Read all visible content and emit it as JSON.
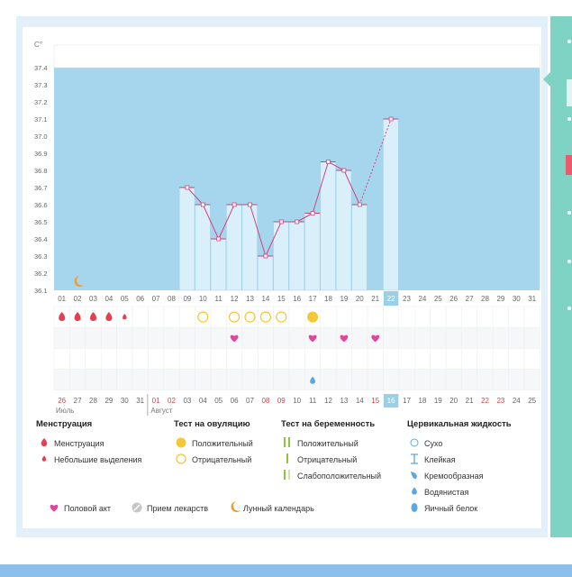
{
  "chart_data": {
    "type": "line",
    "unit_label": "C°",
    "ylim": [
      36.1,
      37.4
    ],
    "y_ticks": [
      "37.4",
      "37.3",
      "37.2",
      "37.1",
      "37.0",
      "36.9",
      "36.8",
      "36.7",
      "36.6",
      "36.5",
      "36.4",
      "36.3",
      "36.2",
      "36.1"
    ],
    "cycle_days": [
      "01",
      "02",
      "03",
      "04",
      "05",
      "06",
      "07",
      "08",
      "09",
      "10",
      "11",
      "12",
      "13",
      "14",
      "15",
      "16",
      "17",
      "18",
      "19",
      "20",
      "21",
      "22",
      "23",
      "24",
      "25",
      "26",
      "27",
      "28",
      "29",
      "30",
      "31"
    ],
    "highlight_day_index": 21,
    "temperatures": [
      null,
      null,
      null,
      null,
      null,
      null,
      null,
      null,
      36.7,
      36.6,
      36.4,
      36.6,
      36.6,
      36.3,
      36.5,
      36.5,
      36.55,
      36.85,
      36.8,
      36.6,
      null,
      37.1,
      null,
      null,
      null,
      null,
      null,
      null,
      null,
      null,
      null
    ],
    "dashed_segment": [
      19,
      21
    ],
    "moon_day_index": 1,
    "menstruation_days": [
      0,
      1,
      2,
      3
    ],
    "light_bleeding_days": [
      4
    ],
    "ovulation_negative_days": [
      9,
      11,
      12,
      13,
      14
    ],
    "ovulation_positive_days": [
      16
    ],
    "intercourse_days": [
      11,
      16,
      18,
      20
    ],
    "cervical_watery_days": [
      16
    ],
    "calendar_dates": [
      "26",
      "27",
      "28",
      "29",
      "30",
      "31",
      "01",
      "02",
      "03",
      "04",
      "05",
      "06",
      "07",
      "08",
      "09",
      "10",
      "11",
      "12",
      "13",
      "14",
      "15",
      "16",
      "17",
      "18",
      "19",
      "20",
      "21",
      "22",
      "23",
      "24",
      "25"
    ],
    "red_date_indices": [
      0,
      6,
      7,
      13,
      14,
      20,
      27,
      28
    ],
    "month_left": "Июль",
    "month_right": "Август",
    "colors": {
      "band": "#a6d6ee",
      "bar": "#d9effa",
      "line": "#d2447f",
      "menstruation": "#e4404f",
      "ovulation": "#f2c738",
      "heart": "#e0479a",
      "drop": "#5ba7e0",
      "moon": "#f39a2d",
      "pregnancy": "#8fc43f",
      "today": "#9bcfe6"
    }
  },
  "legend": {
    "menstruation": {
      "title": "Менструация",
      "items": [
        "Менструация",
        "Небольшие выделения"
      ]
    },
    "ovulation": {
      "title": "Тест на овуляцию",
      "items": [
        "Положительный",
        "Отрицательный"
      ]
    },
    "pregnancy": {
      "title": "Тест на беременность",
      "items": [
        "Положительный",
        "Отрицательный",
        "Слабоположительный"
      ]
    },
    "cervical": {
      "title": "Цервикальная жидкость",
      "items": [
        "Сухо",
        "Клейкая",
        "Кремообразная",
        "Водянистая",
        "Яичный белок"
      ]
    },
    "bottom": [
      "Половой акт",
      "Прием лекарств",
      "Лунный календарь"
    ]
  }
}
